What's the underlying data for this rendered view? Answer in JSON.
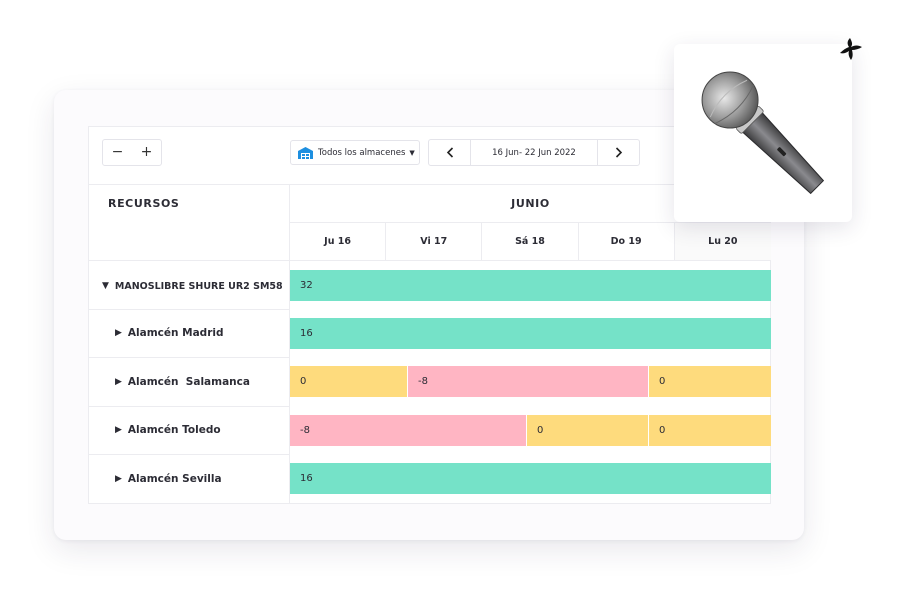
{
  "toolbar": {
    "zoom_out": "−",
    "zoom_in": "+",
    "warehouse_select": "Todos los almacenes",
    "date_range": "16 Jun- 22 Jun 2022",
    "prev_icon": "chevron-left-icon",
    "next_icon": "chevron-right-icon"
  },
  "header": {
    "resources": "RECURSOS",
    "month": "JUNIO",
    "days": [
      "Ju 16",
      "Vi 17",
      "Sá 18",
      "Do 19",
      "Lu 20"
    ]
  },
  "rows": [
    {
      "label": "MANOSLIBRE SHURE UR2 SM58",
      "expanded": true,
      "bars": [
        {
          "value": "32",
          "status": "green"
        }
      ]
    },
    {
      "label": "Alamcén Madrid",
      "bars": [
        {
          "value": "16",
          "status": "green"
        }
      ]
    },
    {
      "label": "Alamcén  Salamanca",
      "bars": [
        {
          "value": "0",
          "status": "yellow"
        },
        {
          "value": "-8",
          "status": "pink"
        },
        {
          "value": "0",
          "status": "yellow"
        }
      ]
    },
    {
      "label": "Alamcén Toledo",
      "bars": [
        {
          "value": "-8",
          "status": "pink"
        },
        {
          "value": "0",
          "status": "yellow"
        },
        {
          "value": "0",
          "status": "yellow"
        }
      ]
    },
    {
      "label": "Alamcén Sevilla",
      "bars": [
        {
          "value": "16",
          "status": "green"
        }
      ]
    }
  ],
  "colors": {
    "available": "#75e2c8",
    "zero": "#fedb7d",
    "shortage": "#ffb5c3"
  },
  "product_image": "microphone-image",
  "decorative_icon": "cross-sparkle-icon"
}
